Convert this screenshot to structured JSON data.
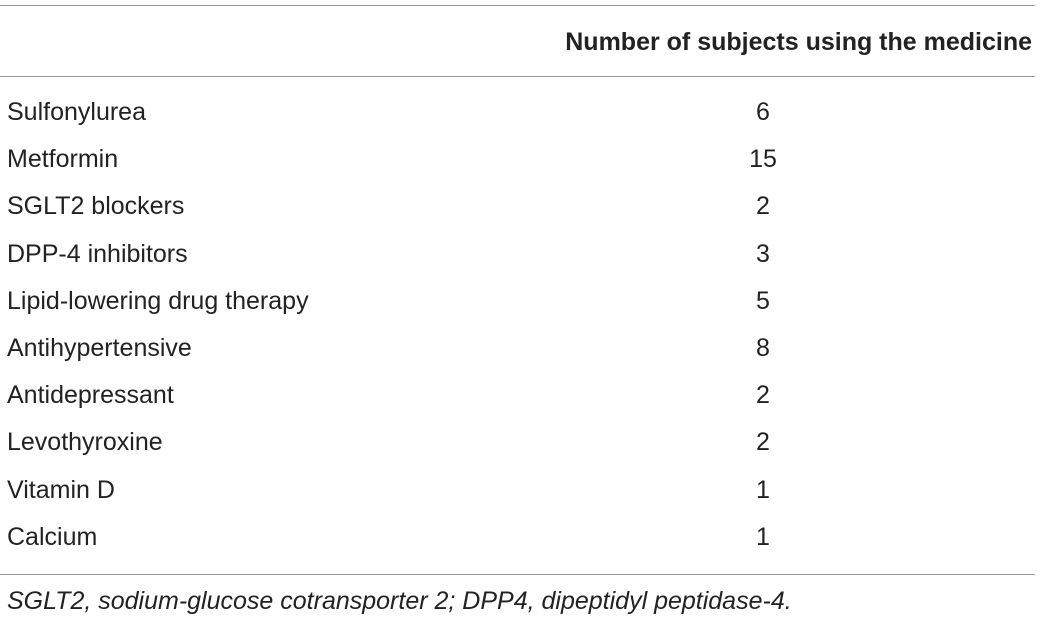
{
  "table": {
    "column_header": "Number of subjects using the medicine",
    "rows": [
      {
        "name": "Sulfonylurea",
        "count": "6"
      },
      {
        "name": "Metformin",
        "count": "15"
      },
      {
        "name": "SGLT2 blockers",
        "count": "2"
      },
      {
        "name": "DPP-4 inhibitors",
        "count": "3"
      },
      {
        "name": "Lipid-lowering drug therapy",
        "count": "5"
      },
      {
        "name": "Antihypertensive",
        "count": "8"
      },
      {
        "name": "Antidepressant",
        "count": "2"
      },
      {
        "name": "Levothyroxine",
        "count": "2"
      },
      {
        "name": "Vitamin D",
        "count": "1"
      },
      {
        "name": "Calcium",
        "count": "1"
      }
    ],
    "footnote": "SGLT2, sodium-glucose cotransporter 2; DPP4, dipeptidyl peptidase-4."
  }
}
